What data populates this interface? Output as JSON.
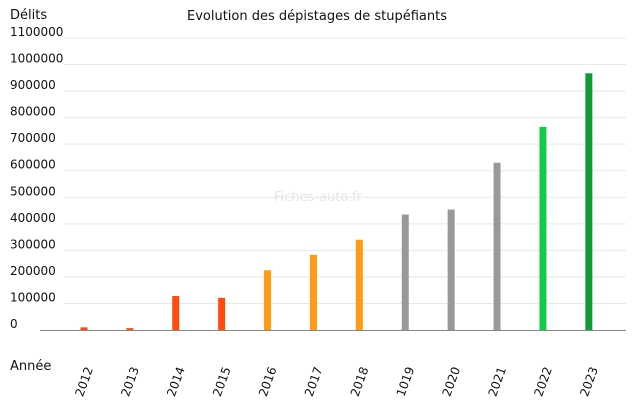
{
  "chart_data": {
    "type": "bar",
    "title": "Evolution des dépistages de stupéfiants",
    "ylabel": "Délits",
    "xlabel": "Année",
    "watermark": "Fiches-auto.fr",
    "categories": [
      "2012",
      "2013",
      "2014",
      "2015",
      "2016",
      "2017",
      "2018",
      "1019",
      "2020",
      "2021",
      "2022",
      "2023"
    ],
    "values": [
      10000,
      7000,
      128000,
      121000,
      225000,
      283000,
      340000,
      435000,
      454000,
      630000,
      765000,
      967000
    ],
    "bar_colors": [
      "#ff4b0f",
      "#ff4b0f",
      "#ff4b0f",
      "#ff4b0f",
      "#ff9a14",
      "#ff9a14",
      "#ff9a14",
      "#999999",
      "#999999",
      "#999999",
      "#11cc44",
      "#119933"
    ],
    "y_ticks": [
      0,
      100000,
      200000,
      300000,
      400000,
      500000,
      600000,
      700000,
      800000,
      900000,
      1000000,
      1100000
    ],
    "ylim": [
      0,
      1100000
    ],
    "grid": true,
    "legend": "none"
  }
}
